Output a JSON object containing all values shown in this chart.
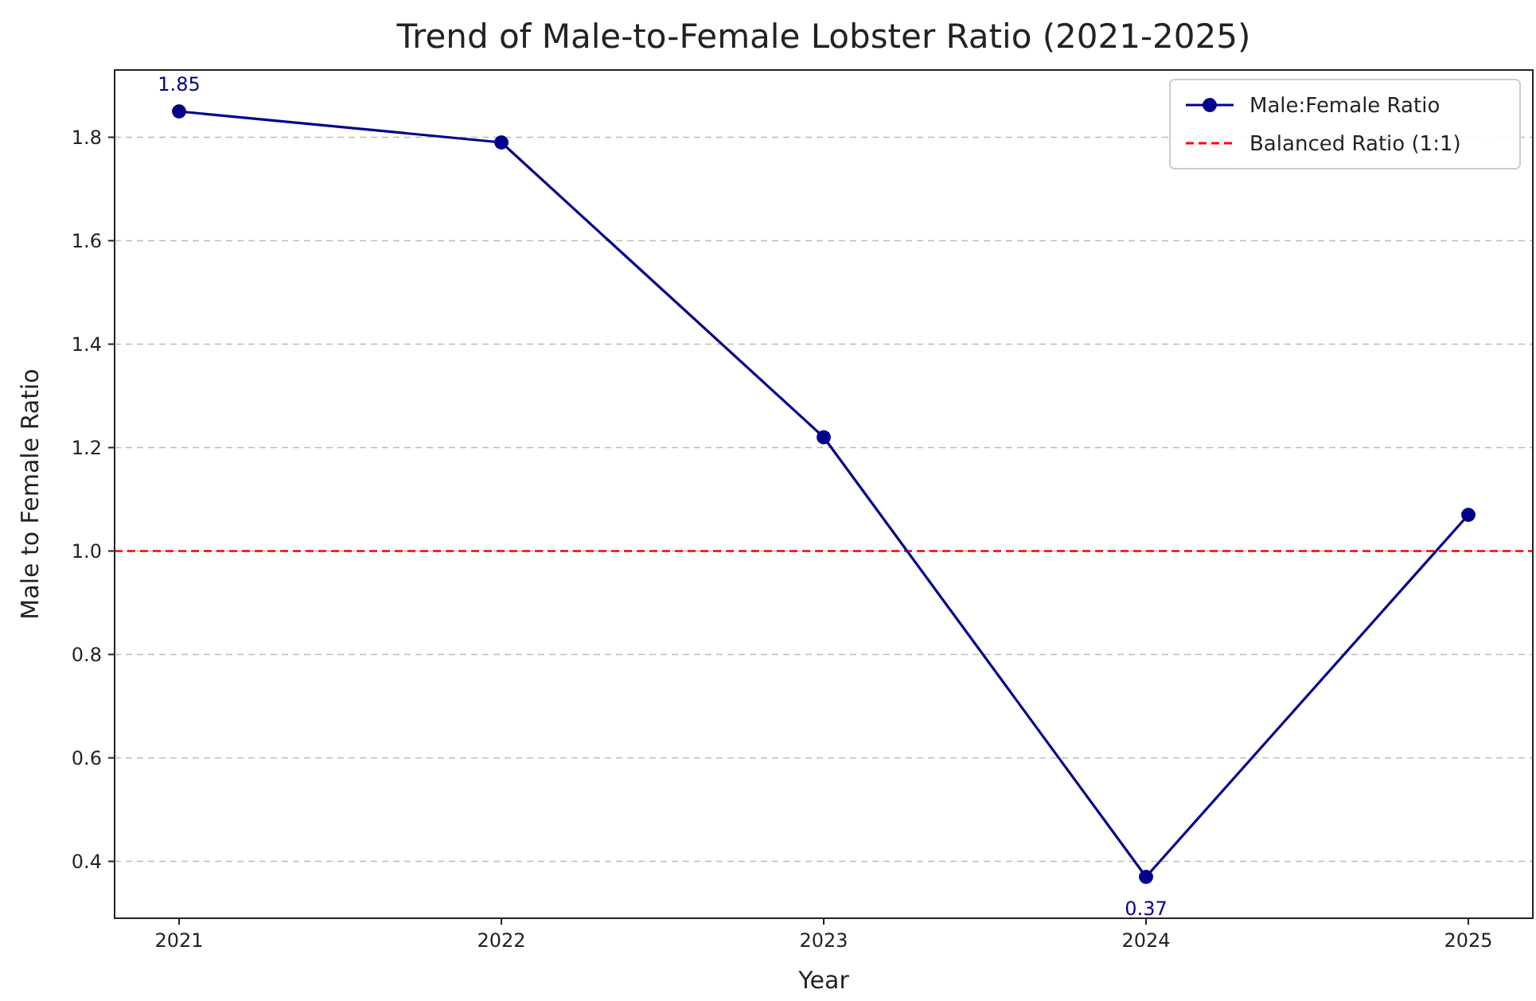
{
  "chart_data": {
    "type": "line",
    "title": "Trend of Male-to-Female Lobster Ratio (2021-2025)",
    "xlabel": "Year",
    "ylabel": "Male to Female Ratio",
    "x": [
      2021,
      2022,
      2023,
      2024,
      2025
    ],
    "series": [
      {
        "name": "Male:Female Ratio",
        "color": "#00008b",
        "values": [
          1.85,
          1.79,
          1.22,
          0.37,
          1.07
        ],
        "value_labels": [
          "1.85",
          null,
          null,
          "0.37",
          null
        ]
      }
    ],
    "xlim": [
      2020.8,
      2025.2
    ],
    "xticks": [
      2021,
      2022,
      2023,
      2024,
      2025
    ],
    "ylim": [
      0.29,
      1.93
    ],
    "yticks": [
      {
        "value": 0.4,
        "label": "0.4"
      },
      {
        "value": 0.6,
        "label": "0.6"
      },
      {
        "value": 0.8,
        "label": "0.8"
      },
      {
        "value": 1.0,
        "label": "1.0"
      },
      {
        "value": 1.2,
        "label": "1.2"
      },
      {
        "value": 1.4,
        "label": "1.4"
      },
      {
        "value": 1.6,
        "label": "1.6"
      },
      {
        "value": 1.8,
        "label": "1.8"
      }
    ],
    "ref_lines": [
      {
        "axis": "y",
        "value": 1.0,
        "label": "Balanced Ratio (1:1)",
        "color": "#ff0000",
        "line_style": "dashed"
      }
    ],
    "grid": "y",
    "legend": "top right",
    "marker": "circle",
    "line_style": "solid"
  }
}
